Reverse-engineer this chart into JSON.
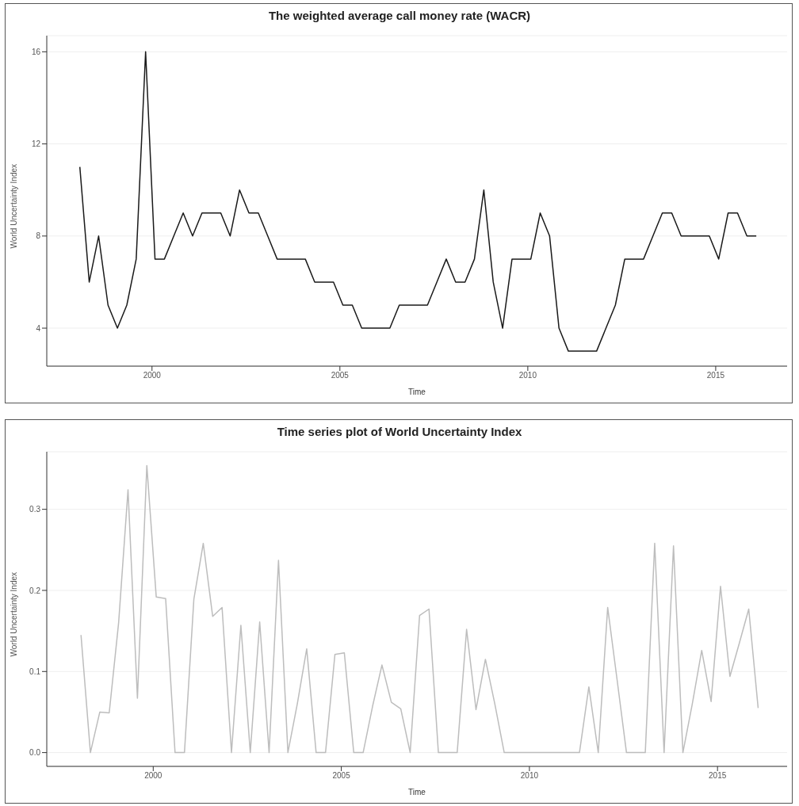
{
  "chart_data": [
    {
      "type": "line",
      "title": "The weighted average call money rate (WACR)",
      "xlabel": "Time",
      "ylabel": "World Uncertainty Index",
      "xlim": [
        1997.2,
        2016.9
      ],
      "xticks": [
        2000,
        2005,
        2010,
        2015
      ],
      "ylim": [
        2.35,
        16.7
      ],
      "yticks": [
        4,
        8,
        12,
        16
      ],
      "grid": "y",
      "marker": "none",
      "line_style": "solid",
      "x": [
        1998.08,
        1998.33,
        1998.58,
        1998.83,
        1999.08,
        1999.33,
        1999.58,
        1999.83,
        2000.08,
        2000.33,
        2000.58,
        2000.83,
        2001.08,
        2001.33,
        2001.58,
        2001.83,
        2002.08,
        2002.33,
        2002.58,
        2002.83,
        2003.08,
        2003.33,
        2003.58,
        2003.83,
        2004.08,
        2004.33,
        2004.58,
        2004.83,
        2005.08,
        2005.33,
        2005.58,
        2005.83,
        2006.08,
        2006.33,
        2006.58,
        2006.83,
        2007.08,
        2007.33,
        2007.58,
        2007.83,
        2008.08,
        2008.33,
        2008.58,
        2008.83,
        2009.08,
        2009.33,
        2009.58,
        2009.83,
        2010.08,
        2010.33,
        2010.58,
        2010.83,
        2011.08,
        2011.33,
        2011.58,
        2011.83,
        2012.08,
        2012.33,
        2012.58,
        2012.83,
        2013.08,
        2013.33,
        2013.58,
        2013.83,
        2014.08,
        2014.33,
        2014.58,
        2014.83,
        2015.08,
        2015.33,
        2015.58,
        2015.83,
        2016.08
      ],
      "series": [
        {
          "color": "#1a1a1a",
          "values": [
            11,
            6,
            8,
            5,
            4,
            5,
            7,
            16,
            7,
            7,
            8,
            9,
            8,
            9,
            9,
            9,
            8,
            10,
            9,
            9,
            8,
            7,
            7,
            7,
            7,
            6,
            6,
            6,
            5,
            5,
            4,
            4,
            4,
            4,
            5,
            5,
            5,
            5,
            6,
            7,
            6,
            6,
            7,
            10,
            6,
            4,
            7,
            7,
            7,
            9,
            8,
            4,
            3,
            3,
            3,
            3,
            4,
            5,
            7,
            7,
            7,
            8,
            9,
            9,
            8,
            8,
            8,
            8,
            7,
            9,
            9,
            8,
            8
          ]
        }
      ]
    },
    {
      "type": "line",
      "title": "Time series plot of World Uncertainty Index",
      "xlabel": "Time",
      "ylabel": "World Uncertainty Index",
      "xlim": [
        1997.17,
        2016.85
      ],
      "xticks": [
        2000,
        2005,
        2010,
        2015
      ],
      "ylim": [
        -0.017,
        0.371
      ],
      "yticks": [
        {
          "value": 0,
          "label": "0.0"
        },
        0.1,
        0.2,
        0.3
      ],
      "grid": "y",
      "marker": "none",
      "line_style": "solid",
      "x": [
        1998.08,
        1998.33,
        1998.58,
        1998.83,
        1999.08,
        1999.33,
        1999.58,
        1999.83,
        2000.08,
        2000.33,
        2000.58,
        2000.83,
        2001.08,
        2001.33,
        2001.58,
        2001.83,
        2002.08,
        2002.33,
        2002.58,
        2002.83,
        2003.08,
        2003.33,
        2003.58,
        2003.83,
        2004.08,
        2004.33,
        2004.58,
        2004.83,
        2005.08,
        2005.33,
        2005.58,
        2005.83,
        2006.08,
        2006.33,
        2006.58,
        2006.83,
        2007.08,
        2007.33,
        2007.58,
        2007.83,
        2008.08,
        2008.33,
        2008.58,
        2008.83,
        2009.08,
        2009.33,
        2009.58,
        2009.83,
        2010.08,
        2010.33,
        2010.58,
        2010.83,
        2011.08,
        2011.33,
        2011.58,
        2011.83,
        2012.08,
        2012.33,
        2012.58,
        2012.83,
        2013.08,
        2013.33,
        2013.58,
        2013.83,
        2014.08,
        2014.33,
        2014.58,
        2014.83,
        2015.08,
        2015.33,
        2015.58,
        2015.83,
        2016.08
      ],
      "series": [
        {
          "color": "#bdbdbd",
          "values": [
            0.145,
            0,
            0.05,
            0.049,
            0.16,
            0.324,
            0.067,
            0.354,
            0.192,
            0.19,
            0,
            0,
            0.189,
            0.258,
            0.168,
            0.179,
            0,
            0.157,
            0,
            0.161,
            0,
            0.237,
            0,
            0.06,
            0.128,
            0,
            0,
            0.121,
            0.123,
            0,
            0,
            0.057,
            0.108,
            0.062,
            0.054,
            0,
            0.169,
            0.177,
            0,
            0,
            0,
            0.152,
            0.053,
            0.115,
            0.06,
            0,
            0,
            0,
            0,
            0,
            0,
            0,
            0,
            0,
            0.081,
            0,
            0.179,
            0.09,
            0,
            0,
            0,
            0.258,
            0,
            0.255,
            0,
            0.06,
            0.126,
            0.063,
            0.205,
            0.094,
            0.135,
            0.177,
            0.055
          ]
        }
      ]
    }
  ]
}
